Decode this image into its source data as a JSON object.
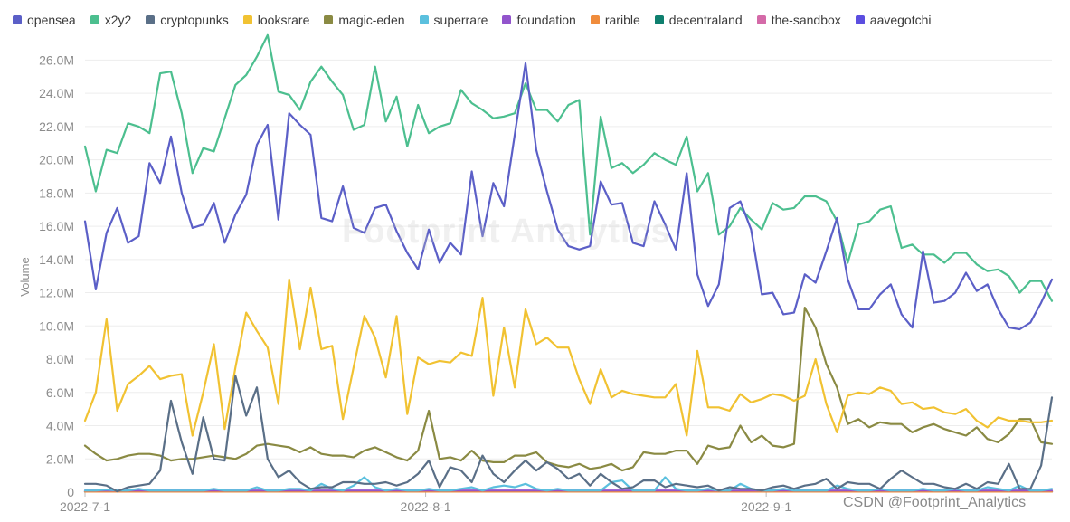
{
  "chart_data": {
    "type": "line",
    "title": "",
    "xlabel": "",
    "ylabel": "Volume",
    "ylim": [
      0,
      27000000
    ],
    "yticks": [
      0,
      2000000,
      4000000,
      6000000,
      8000000,
      10000000,
      12000000,
      14000000,
      16000000,
      18000000,
      20000000,
      22000000,
      24000000,
      26000000
    ],
    "ytick_labels": [
      "0",
      "2.0M",
      "4.0M",
      "6.0M",
      "8.0M",
      "10.0M",
      "12.0M",
      "14.0M",
      "16.0M",
      "18.0M",
      "20.0M",
      "22.0M",
      "24.0M",
      "26.0M"
    ],
    "x_start": "2022-07-01",
    "x_end": "2022-09-27",
    "xtick_labels": [
      {
        "date": "2022-07-01",
        "label": "2022-7-1"
      },
      {
        "date": "2022-08-01",
        "label": "2022-8-1"
      },
      {
        "date": "2022-09-01",
        "label": "2022-9-1"
      }
    ],
    "legend_position": "top-left",
    "grid": true,
    "series": [
      {
        "name": "opensea",
        "color": "#5b5fc7",
        "values": [
          16.3,
          12.2,
          15.6,
          17.1,
          15.0,
          15.4,
          19.8,
          18.6,
          21.4,
          18.0,
          15.9,
          16.1,
          17.4,
          15.0,
          16.7,
          17.9,
          20.9,
          22.1,
          16.4,
          22.8,
          22.1,
          21.5,
          16.5,
          16.3,
          18.4,
          15.9,
          15.6,
          17.1,
          17.3,
          15.7,
          14.4,
          13.4,
          15.8,
          13.8,
          15.0,
          14.3,
          19.3,
          15.4,
          18.6,
          17.2,
          21.5,
          25.8,
          20.6,
          18.1,
          15.8,
          14.8,
          14.6,
          14.8,
          18.7,
          17.3,
          17.4,
          15.0,
          14.8,
          17.5,
          16.1,
          14.6,
          19.2,
          13.1,
          11.2,
          12.5,
          17.1,
          17.5,
          15.8,
          11.9,
          12.0,
          10.7,
          10.8,
          13.1,
          12.6,
          14.5,
          16.5,
          12.8,
          11.0,
          11.0,
          11.9,
          12.5,
          10.7,
          9.9,
          14.5,
          11.4,
          11.5,
          12.0,
          13.2,
          12.1,
          12.5,
          11.0,
          9.9,
          9.8,
          10.2,
          11.4,
          12.8
        ]
      },
      {
        "name": "x2y2",
        "color": "#4cbf8f",
        "values": [
          20.8,
          18.1,
          20.6,
          20.4,
          22.2,
          22.0,
          21.6,
          25.2,
          25.3,
          22.8,
          19.2,
          20.7,
          20.5,
          22.5,
          24.5,
          25.1,
          26.2,
          27.5,
          24.1,
          23.9,
          23.0,
          24.7,
          25.6,
          24.7,
          23.9,
          21.8,
          22.1,
          25.6,
          22.3,
          23.8,
          20.8,
          23.3,
          21.6,
          22.0,
          22.2,
          24.2,
          23.4,
          23.0,
          22.5,
          22.6,
          22.8,
          24.6,
          23.0,
          23.0,
          22.3,
          23.3,
          23.6,
          15.5,
          22.6,
          19.5,
          19.8,
          19.2,
          19.7,
          20.4,
          20.0,
          19.7,
          21.4,
          18.1,
          19.2,
          15.5,
          16.0,
          17.1,
          16.4,
          15.8,
          17.4,
          17.0,
          17.1,
          17.8,
          17.8,
          17.5,
          16.3,
          13.8,
          16.1,
          16.3,
          17.0,
          17.2,
          14.7,
          14.9,
          14.3,
          14.3,
          13.8,
          14.4,
          14.4,
          13.7,
          13.3,
          13.4,
          13.0,
          12.0,
          12.7,
          12.7,
          11.5
        ]
      },
      {
        "name": "cryptopunks",
        "color": "#5a6f87",
        "values": [
          0.5,
          0.5,
          0.4,
          0.05,
          0.3,
          0.4,
          0.5,
          1.3,
          5.5,
          3.0,
          1.1,
          4.5,
          2.0,
          1.9,
          7.0,
          4.6,
          6.3,
          2.0,
          0.9,
          1.3,
          0.6,
          0.2,
          0.3,
          0.3,
          0.6,
          0.6,
          0.5,
          0.5,
          0.6,
          0.4,
          0.6,
          1.1,
          1.9,
          0.3,
          1.5,
          1.3,
          0.6,
          2.2,
          1.1,
          0.6,
          1.3,
          1.9,
          1.3,
          1.8,
          1.4,
          0.8,
          1.1,
          0.4,
          1.1,
          0.6,
          0.2,
          0.3,
          0.7,
          0.7,
          0.3,
          0.5,
          0.4,
          0.3,
          0.4,
          0.1,
          0.3,
          0.2,
          0.2,
          0.1,
          0.3,
          0.4,
          0.2,
          0.4,
          0.5,
          0.8,
          0.2,
          0.6,
          0.5,
          0.5,
          0.2,
          0.8,
          1.3,
          0.9,
          0.5,
          0.5,
          0.3,
          0.2,
          0.5,
          0.2,
          0.6,
          0.5,
          1.7,
          0.2,
          0.2,
          1.6,
          5.7
        ]
      },
      {
        "name": "looksrare",
        "color": "#f1c232",
        "values": [
          4.3,
          6.0,
          10.4,
          4.9,
          6.5,
          7.0,
          7.6,
          6.8,
          7.0,
          7.1,
          3.4,
          6.0,
          8.9,
          3.8,
          7.5,
          10.8,
          9.7,
          8.7,
          5.3,
          12.8,
          8.6,
          12.3,
          8.6,
          8.8,
          4.4,
          7.5,
          10.6,
          9.3,
          6.9,
          10.6,
          4.7,
          8.1,
          7.7,
          7.9,
          7.8,
          8.4,
          8.2,
          11.7,
          5.8,
          9.9,
          6.3,
          11.0,
          8.9,
          9.3,
          8.7,
          8.7,
          6.8,
          5.3,
          7.4,
          5.7,
          6.1,
          5.9,
          5.8,
          5.7,
          5.7,
          6.5,
          3.4,
          8.5,
          5.1,
          5.1,
          4.9,
          5.9,
          5.4,
          5.6,
          5.9,
          5.8,
          5.5,
          5.8,
          8.0,
          5.3,
          3.6,
          5.8,
          6.0,
          5.9,
          6.3,
          6.1,
          5.3,
          5.4,
          5.0,
          5.1,
          4.8,
          4.7,
          5.0,
          4.3,
          3.9,
          4.5,
          4.3,
          4.3,
          4.2,
          4.2,
          4.3
        ]
      },
      {
        "name": "magic-eden",
        "color": "#8a8a43",
        "values": [
          2.8,
          2.3,
          1.9,
          2.0,
          2.2,
          2.3,
          2.3,
          2.2,
          1.9,
          2.0,
          2.0,
          2.1,
          2.2,
          2.1,
          2.0,
          2.3,
          2.8,
          2.9,
          2.8,
          2.7,
          2.4,
          2.7,
          2.3,
          2.2,
          2.2,
          2.1,
          2.5,
          2.7,
          2.4,
          2.1,
          1.9,
          2.5,
          4.9,
          2.0,
          2.1,
          1.9,
          2.5,
          1.9,
          1.8,
          1.8,
          2.2,
          2.2,
          2.4,
          1.8,
          1.6,
          1.5,
          1.7,
          1.4,
          1.5,
          1.7,
          1.3,
          1.5,
          2.4,
          2.3,
          2.3,
          2.5,
          2.5,
          1.7,
          2.8,
          2.6,
          2.7,
          4.0,
          3.0,
          3.4,
          2.8,
          2.7,
          2.9,
          11.1,
          9.9,
          7.7,
          6.3,
          4.1,
          4.4,
          3.9,
          4.2,
          4.1,
          4.1,
          3.6,
          3.9,
          4.1,
          3.8,
          3.6,
          3.4,
          3.9,
          3.2,
          3.0,
          3.5,
          4.4,
          4.4,
          3.0,
          2.9
        ]
      },
      {
        "name": "superrare",
        "color": "#5bc0de",
        "values": [
          0.1,
          0.1,
          0.15,
          0.1,
          0.1,
          0.2,
          0.1,
          0.1,
          0.1,
          0.1,
          0.1,
          0.1,
          0.2,
          0.1,
          0.1,
          0.1,
          0.3,
          0.1,
          0.1,
          0.2,
          0.2,
          0.1,
          0.5,
          0.2,
          0.1,
          0.4,
          0.9,
          0.3,
          0.1,
          0.2,
          0.1,
          0.1,
          0.2,
          0.1,
          0.1,
          0.2,
          0.3,
          0.1,
          0.3,
          0.4,
          0.3,
          0.5,
          0.2,
          0.1,
          0.2,
          0.1,
          0.1,
          0.1,
          0.1,
          0.6,
          0.7,
          0.1,
          0.1,
          0.1,
          0.9,
          0.2,
          0.1,
          0.1,
          0.2,
          0.1,
          0.1,
          0.5,
          0.2,
          0.1,
          0.1,
          0.2,
          0.1,
          0.1,
          0.1,
          0.1,
          0.4,
          0.2,
          0.1,
          0.1,
          0.2,
          0.1,
          0.1,
          0.1,
          0.2,
          0.1,
          0.1,
          0.2,
          0.1,
          0.1,
          0.3,
          0.2,
          0.1,
          0.4,
          0.1,
          0.1,
          0.2
        ]
      },
      {
        "name": "foundation",
        "color": "#9254cc",
        "values": [
          0.1,
          0.1,
          0.1,
          0.1,
          0.1,
          0.1,
          0.1,
          0.1,
          0.1,
          0.1,
          0.1,
          0.1,
          0.1,
          0.1,
          0.1,
          0.1,
          0.1,
          0.1,
          0.1,
          0.1,
          0.1,
          0.1,
          0.1,
          0.1,
          0.1,
          0.1,
          0.1,
          0.1,
          0.1,
          0.1,
          0.1,
          0.1,
          0.1,
          0.1,
          0.1,
          0.1,
          0.1,
          0.1,
          0.1,
          0.1,
          0.1,
          0.1,
          0.1,
          0.1,
          0.1,
          0.1,
          0.1,
          0.1,
          0.1,
          0.1,
          0.1,
          0.1,
          0.1,
          0.1,
          0.1,
          0.1,
          0.1,
          0.1,
          0.1,
          0.1,
          0.1,
          0.1,
          0.1,
          0.1,
          0.1,
          0.1,
          0.1,
          0.1,
          0.1,
          0.1,
          0.1,
          0.1,
          0.1,
          0.1,
          0.1,
          0.1,
          0.1,
          0.1,
          0.1,
          0.1,
          0.1,
          0.1,
          0.1,
          0.1,
          0.1,
          0.1,
          0.1,
          0.1,
          0.1,
          0.1,
          0.1
        ]
      },
      {
        "name": "rarible",
        "color": "#f08c3c",
        "values": [
          0.03,
          0.03,
          0.03,
          0.03,
          0.03,
          0.03,
          0.03,
          0.03,
          0.03,
          0.03,
          0.03,
          0.03,
          0.03,
          0.03,
          0.03,
          0.03,
          0.03,
          0.03,
          0.03,
          0.03,
          0.03,
          0.03,
          0.03,
          0.03,
          0.03,
          0.03,
          0.03,
          0.03,
          0.03,
          0.03,
          0.03,
          0.03,
          0.03,
          0.03,
          0.03,
          0.03,
          0.03,
          0.03,
          0.03,
          0.03,
          0.03,
          0.03,
          0.03,
          0.03,
          0.03,
          0.03,
          0.03,
          0.03,
          0.03,
          0.03,
          0.03,
          0.03,
          0.03,
          0.03,
          0.03,
          0.03,
          0.03,
          0.03,
          0.03,
          0.03,
          0.03,
          0.03,
          0.03,
          0.03,
          0.03,
          0.03,
          0.03,
          0.03,
          0.03,
          0.03,
          0.03,
          0.03,
          0.03,
          0.03,
          0.03,
          0.03,
          0.03,
          0.03,
          0.03,
          0.03,
          0.03,
          0.03,
          0.03,
          0.03,
          0.03,
          0.03,
          0.03,
          0.03,
          0.03,
          0.03,
          0.03
        ]
      },
      {
        "name": "decentraland",
        "color": "#0e7f6e",
        "values": [
          0.03,
          0.03,
          0.03,
          0.03,
          0.03,
          0.03,
          0.03,
          0.03,
          0.03,
          0.03,
          0.03,
          0.03,
          0.03,
          0.03,
          0.03,
          0.03,
          0.03,
          0.03,
          0.03,
          0.03,
          0.03,
          0.03,
          0.03,
          0.03,
          0.03,
          0.03,
          0.03,
          0.03,
          0.03,
          0.03,
          0.03,
          0.03,
          0.03,
          0.03,
          0.03,
          0.03,
          0.03,
          0.03,
          0.03,
          0.03,
          0.03,
          0.03,
          0.03,
          0.03,
          0.03,
          0.03,
          0.03,
          0.03,
          0.03,
          0.03,
          0.03,
          0.03,
          0.03,
          0.03,
          0.03,
          0.03,
          0.03,
          0.03,
          0.03,
          0.03,
          0.03,
          0.03,
          0.03,
          0.03,
          0.03,
          0.03,
          0.03,
          0.03,
          0.03,
          0.03,
          0.03,
          0.03,
          0.03,
          0.03,
          0.03,
          0.03,
          0.03,
          0.03,
          0.03,
          0.03,
          0.03,
          0.03,
          0.03,
          0.03,
          0.03,
          0.03,
          0.03,
          0.03,
          0.03,
          0.03,
          0.03
        ]
      },
      {
        "name": "the-sandbox",
        "color": "#d46aa8",
        "values": [
          0.05,
          0.05,
          0.05,
          0.05,
          0.05,
          0.05,
          0.05,
          0.05,
          0.05,
          0.05,
          0.05,
          0.05,
          0.05,
          0.05,
          0.05,
          0.05,
          0.05,
          0.05,
          0.05,
          0.05,
          0.05,
          0.05,
          0.05,
          0.05,
          0.05,
          0.05,
          0.05,
          0.05,
          0.05,
          0.05,
          0.05,
          0.05,
          0.05,
          0.05,
          0.05,
          0.05,
          0.05,
          0.05,
          0.05,
          0.05,
          0.05,
          0.05,
          0.05,
          0.05,
          0.05,
          0.05,
          0.05,
          0.05,
          0.05,
          0.05,
          0.05,
          0.05,
          0.05,
          0.05,
          0.05,
          0.05,
          0.05,
          0.05,
          0.05,
          0.05,
          0.05,
          0.05,
          0.05,
          0.05,
          0.05,
          0.05,
          0.05,
          0.05,
          0.05,
          0.05,
          0.05,
          0.05,
          0.05,
          0.05,
          0.05,
          0.05,
          0.05,
          0.05,
          0.05,
          0.05,
          0.05,
          0.05,
          0.05,
          0.05,
          0.05,
          0.05,
          0.05,
          0.05,
          0.05,
          0.05,
          0.05
        ]
      },
      {
        "name": "aavegotchi",
        "color": "#5b4ee0",
        "values": [
          0.05,
          0.05,
          0.05,
          0.05,
          0.05,
          0.05,
          0.05,
          0.05,
          0.05,
          0.05,
          0.05,
          0.05,
          0.05,
          0.05,
          0.05,
          0.05,
          0.05,
          0.05,
          0.05,
          0.05,
          0.05,
          0.05,
          0.05,
          0.05,
          0.05,
          0.05,
          0.05,
          0.05,
          0.05,
          0.05,
          0.05,
          0.05,
          0.05,
          0.05,
          0.05,
          0.05,
          0.05,
          0.05,
          0.05,
          0.05,
          0.05,
          0.05,
          0.05,
          0.05,
          0.05,
          0.05,
          0.05,
          0.05,
          0.05,
          0.05,
          0.05,
          0.05,
          0.05,
          0.05,
          0.05,
          0.05,
          0.05,
          0.05,
          0.05,
          0.05,
          0.05,
          0.05,
          0.05,
          0.05,
          0.05,
          0.05,
          0.05,
          0.05,
          0.05,
          0.05,
          0.05,
          0.05,
          0.05,
          0.05,
          0.05,
          0.05,
          0.05,
          0.05,
          0.05,
          0.05,
          0.05,
          0.05,
          0.05,
          0.05,
          0.05,
          0.05,
          0.05,
          0.05,
          0.05,
          0.05,
          0.05
        ]
      }
    ],
    "value_unit": "M",
    "watermark": "Footprint Analytics"
  },
  "attribution": "CSDN @Footprint_Analytics"
}
